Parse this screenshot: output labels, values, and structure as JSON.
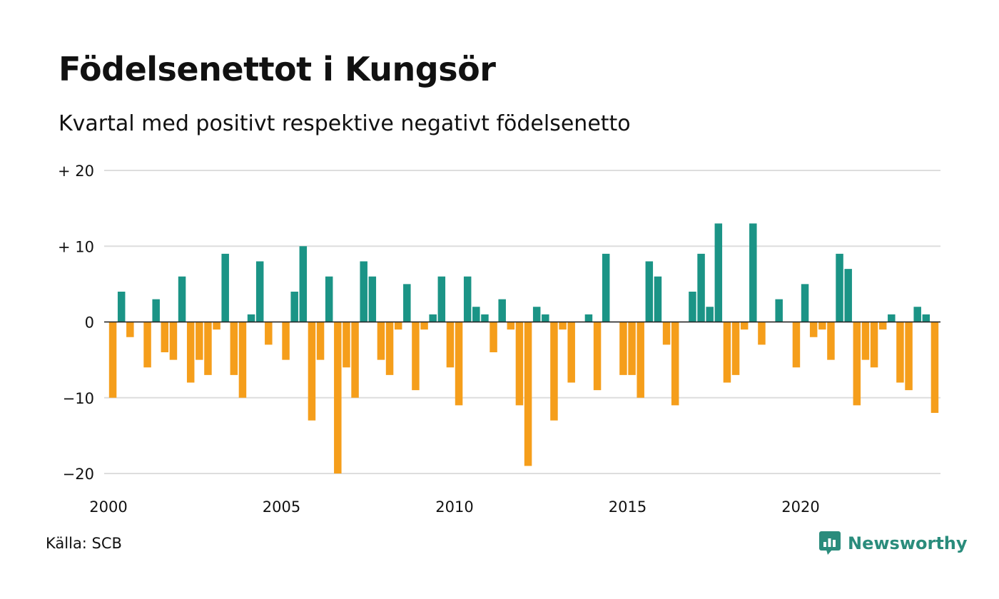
{
  "title": "Födelsenettot i Kungsör",
  "subtitle": "Kvartal med positivt respektive negativt födelsenetto",
  "source": "Källa: SCB",
  "brand": "Newsworthy",
  "brand_icon": "newsworthy-logo-icon",
  "colors": {
    "positive": "#1b9486",
    "negative": "#f59e1b",
    "grid": "#dddddd",
    "zero_line": "#222222"
  },
  "chart_data": {
    "type": "bar",
    "title": "Födelsenettot i Kungsör",
    "subtitle": "Kvartal med positivt respektive negativt födelsenetto",
    "xlabel": "",
    "ylabel": "",
    "ylim": [
      -20,
      20
    ],
    "yticks": [
      20,
      10,
      0,
      -10,
      -20
    ],
    "ytick_labels": [
      "+ 20",
      "+ 10",
      "0",
      "−10",
      "−20"
    ],
    "xticks": [
      "2000",
      "2005",
      "2010",
      "2015",
      "2020"
    ],
    "grid": true,
    "start_year": 2000,
    "categories": [
      "2000 Q1",
      "2000 Q2",
      "2000 Q3",
      "2000 Q4",
      "2001 Q1",
      "2001 Q2",
      "2001 Q3",
      "2001 Q4",
      "2002 Q1",
      "2002 Q2",
      "2002 Q3",
      "2002 Q4",
      "2003 Q1",
      "2003 Q2",
      "2003 Q3",
      "2003 Q4",
      "2004 Q1",
      "2004 Q2",
      "2004 Q3",
      "2004 Q4",
      "2005 Q1",
      "2005 Q2",
      "2005 Q3",
      "2005 Q4",
      "2006 Q1",
      "2006 Q2",
      "2006 Q3",
      "2006 Q4",
      "2007 Q1",
      "2007 Q2",
      "2007 Q3",
      "2007 Q4",
      "2008 Q1",
      "2008 Q2",
      "2008 Q3",
      "2008 Q4",
      "2009 Q1",
      "2009 Q2",
      "2009 Q3",
      "2009 Q4",
      "2010 Q1",
      "2010 Q2",
      "2010 Q3",
      "2010 Q4",
      "2011 Q1",
      "2011 Q2",
      "2011 Q3",
      "2011 Q4",
      "2012 Q1",
      "2012 Q2",
      "2012 Q3",
      "2012 Q4",
      "2013 Q1",
      "2013 Q2",
      "2013 Q3",
      "2013 Q4",
      "2014 Q1",
      "2014 Q2",
      "2014 Q3",
      "2014 Q4",
      "2015 Q1",
      "2015 Q2",
      "2015 Q3",
      "2015 Q4",
      "2016 Q1",
      "2016 Q2",
      "2016 Q3",
      "2016 Q4",
      "2017 Q1",
      "2017 Q2",
      "2017 Q3",
      "2017 Q4",
      "2018 Q1",
      "2018 Q2",
      "2018 Q3",
      "2018 Q4",
      "2019 Q1",
      "2019 Q2",
      "2019 Q3",
      "2019 Q4",
      "2020 Q1",
      "2020 Q2",
      "2020 Q3",
      "2020 Q4",
      "2021 Q1",
      "2021 Q2",
      "2021 Q3",
      "2021 Q4",
      "2022 Q1",
      "2022 Q2",
      "2022 Q3",
      "2022 Q4",
      "2023 Q1",
      "2023 Q2",
      "2023 Q3",
      "2023 Q4",
      "2024 Q1"
    ],
    "values": [
      -10,
      4,
      -2,
      0,
      -6,
      3,
      -4,
      -5,
      6,
      -8,
      -5,
      -7,
      -1,
      9,
      -7,
      -10,
      1,
      8,
      -3,
      0,
      -5,
      4,
      10,
      -13,
      -5,
      6,
      -20,
      -6,
      -10,
      8,
      6,
      -5,
      -7,
      -1,
      5,
      -9,
      -1,
      1,
      6,
      -6,
      -11,
      6,
      2,
      1,
      -4,
      3,
      -1,
      -11,
      -19,
      2,
      1,
      -13,
      -1,
      -8,
      0,
      1,
      -9,
      9,
      0,
      -7,
      -7,
      -10,
      8,
      6,
      -3,
      -11,
      0,
      4,
      9,
      2,
      13,
      -8,
      -7,
      -1,
      13,
      -3,
      0,
      3,
      0,
      -6,
      5,
      -2,
      -1,
      -5,
      9,
      7,
      -11,
      -5,
      -6,
      -1,
      1,
      -8,
      -9,
      2,
      1,
      -12,
      0
    ]
  }
}
